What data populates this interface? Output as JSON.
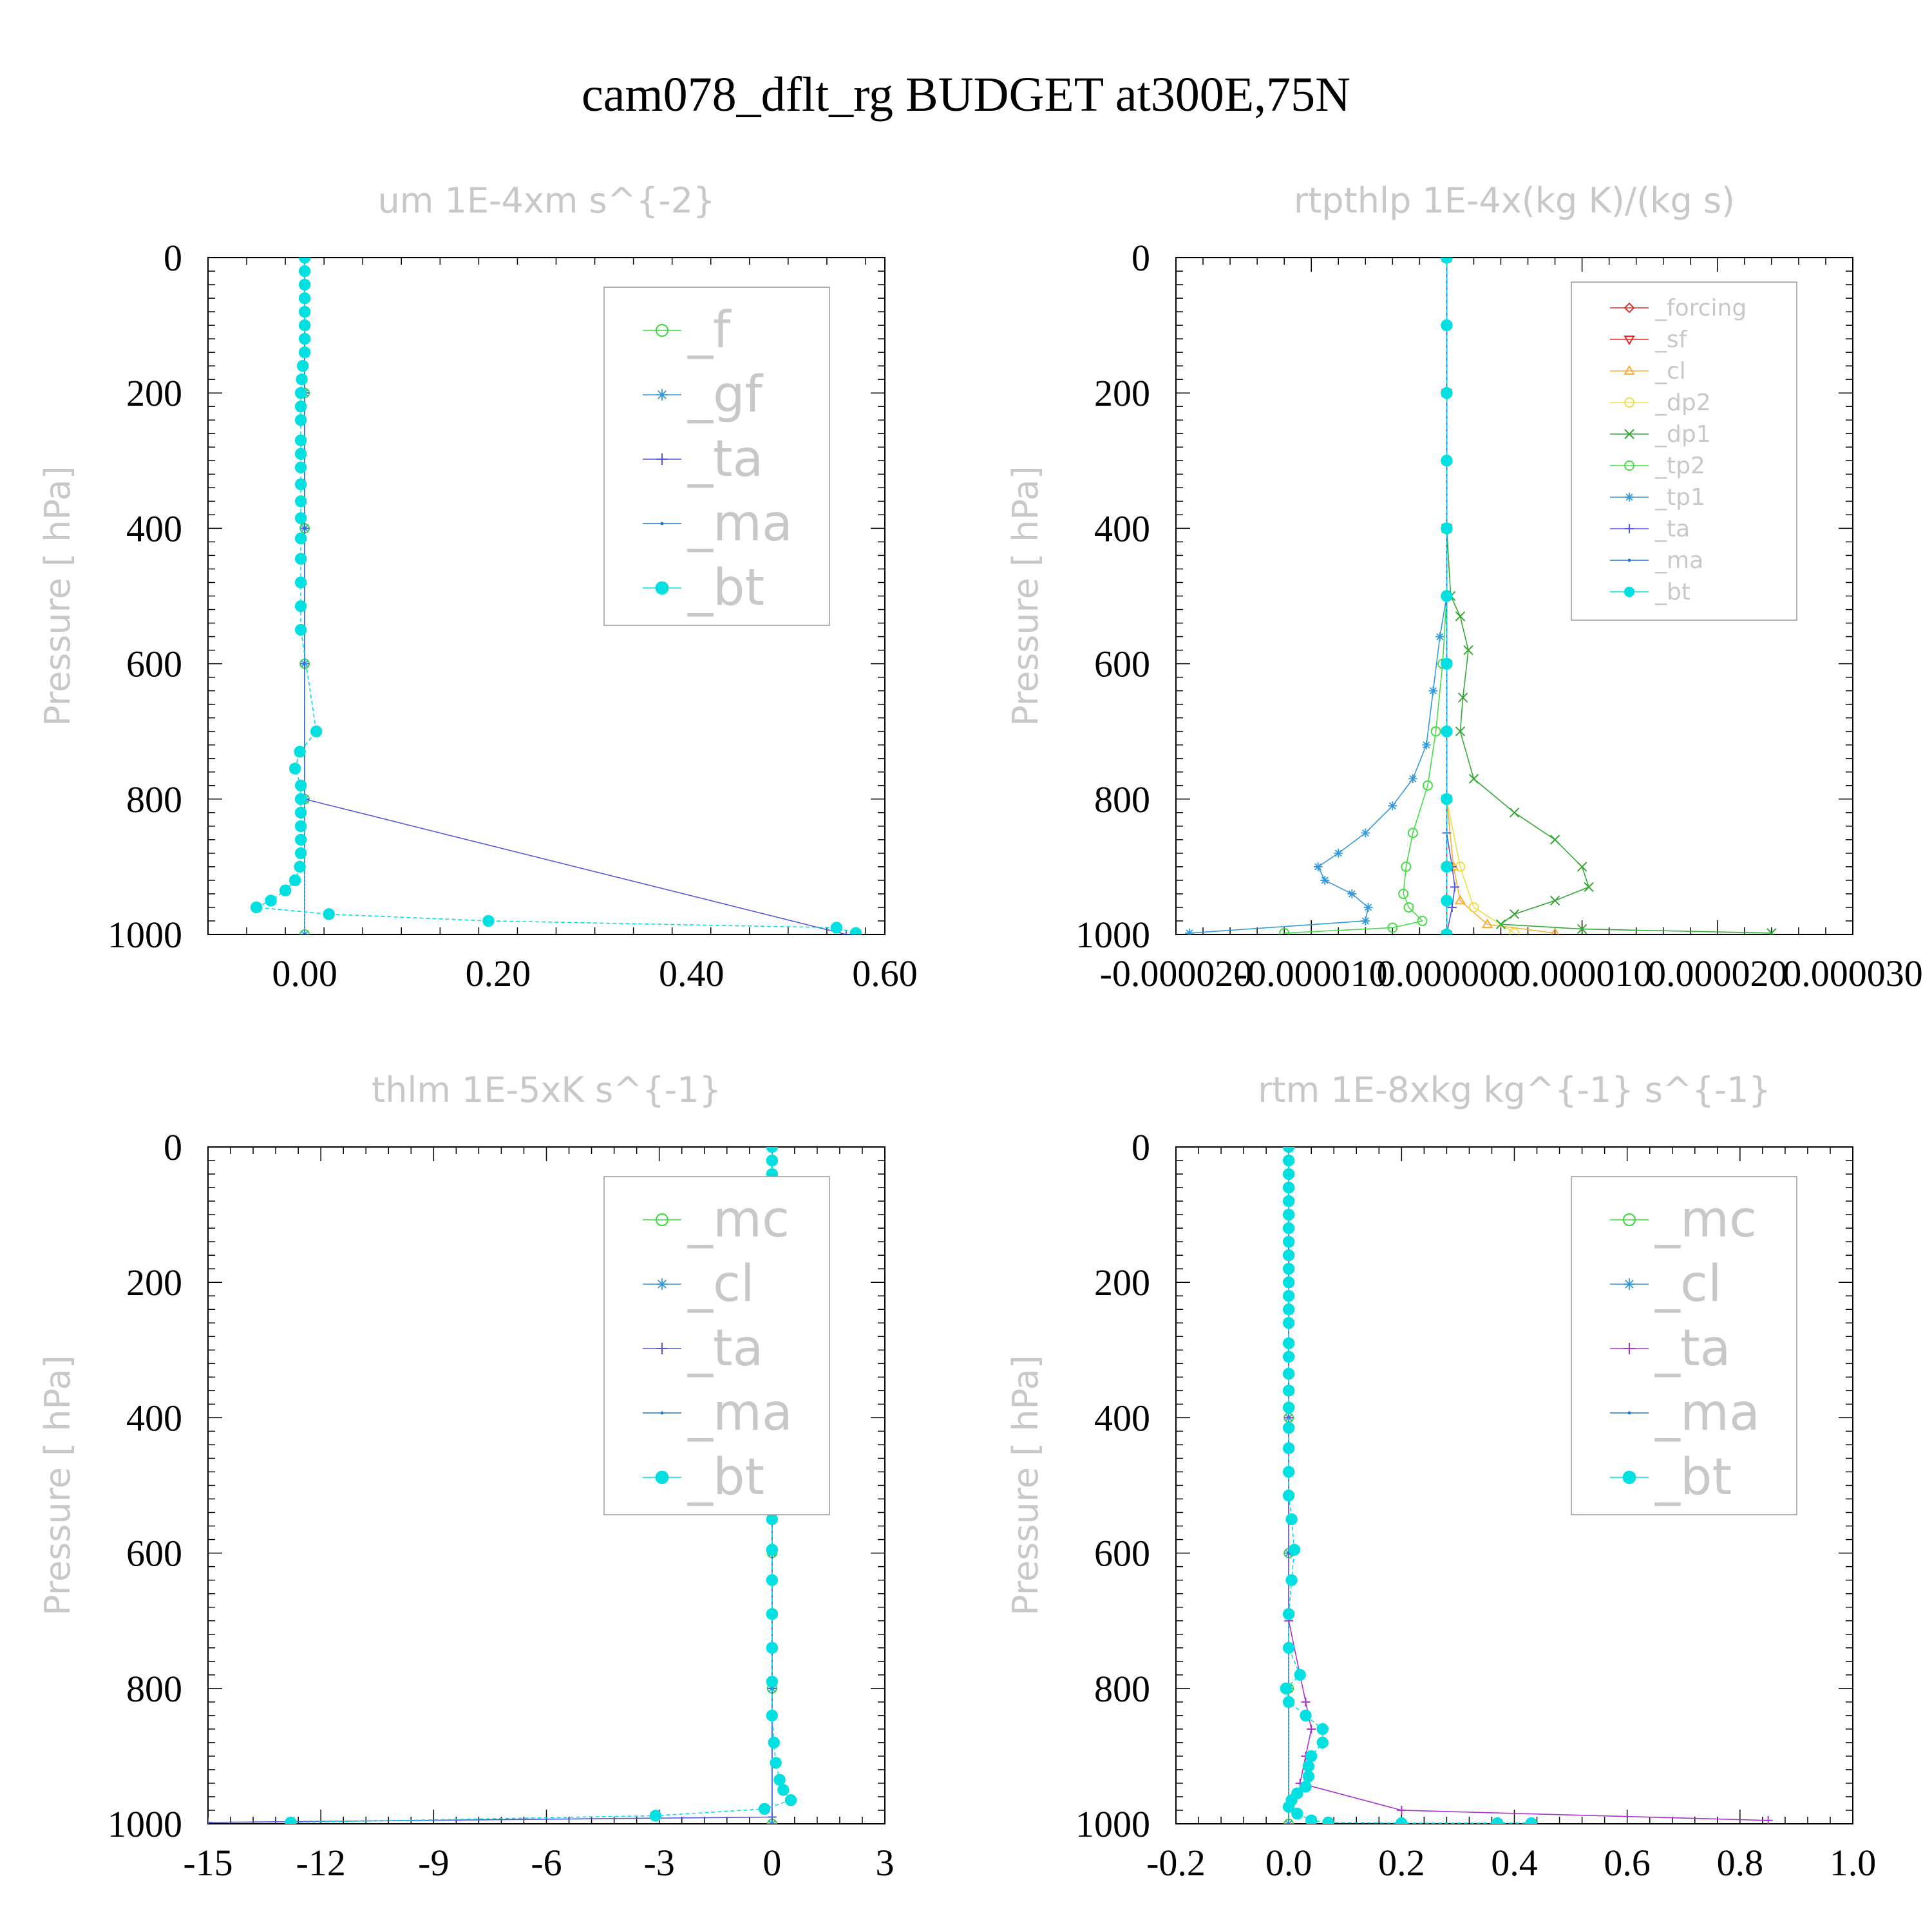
{
  "figure": {
    "title": "cam078_dflt_rg  BUDGET at300E,75N"
  },
  "chart_data": [
    {
      "type": "line",
      "title": "um  1E-4xm s^{-2}",
      "ylabel": "Pressure [ hPa]",
      "xlabel": "",
      "xlim": [
        -0.1,
        0.6
      ],
      "ylim": [
        1000,
        0
      ],
      "xticks": [
        0.0,
        0.2,
        0.4,
        0.6
      ],
      "xtick_labels": [
        "0.00",
        "0.20",
        "0.40",
        "0.60"
      ],
      "yticks": [
        0,
        200,
        400,
        600,
        800,
        1000
      ],
      "ytick_labels": [
        "0",
        "200",
        "400",
        "600",
        "800",
        "1000"
      ],
      "legend": "top-right",
      "grid": false,
      "series": [
        {
          "name": "_f",
          "color": "#33dd33",
          "marker": "circle-open",
          "x": [
            0.0,
            0.0,
            0.0,
            0.0,
            0.0,
            0.0
          ],
          "y": [
            0,
            200,
            400,
            600,
            800,
            1000
          ]
        },
        {
          "name": "_gf",
          "color": "#3399dd",
          "marker": "asterisk",
          "x": [
            0.0,
            0.0,
            0.0,
            0.0,
            0.0,
            0.0
          ],
          "y": [
            0,
            200,
            400,
            600,
            800,
            1000
          ]
        },
        {
          "name": "_ta",
          "color": "#5555dd",
          "marker": "plus",
          "x": [
            0.0,
            0.0,
            0.0,
            0.0,
            0.0,
            0.56
          ],
          "y": [
            0,
            200,
            400,
            600,
            800,
            1000
          ]
        },
        {
          "name": "_ma",
          "color": "#2277cc",
          "marker": "dot",
          "x": [
            0.0,
            0.0,
            0.0,
            0.0,
            0.0,
            0.0
          ],
          "y": [
            0,
            200,
            400,
            600,
            800,
            1000
          ]
        },
        {
          "name": "_bt",
          "color": "#00e0e0",
          "marker": "filled-circle",
          "x": [
            0.0,
            0.0,
            0.0,
            0.0,
            0.0,
            0.0,
            0.0,
            0.0,
            -0.002,
            -0.003,
            -0.004,
            -0.004,
            -0.004,
            -0.004,
            -0.004,
            -0.004,
            -0.004,
            -0.004,
            -0.004,
            -0.004,
            -0.004,
            -0.004,
            -0.004,
            -0.004,
            0.012,
            -0.005,
            -0.01,
            -0.004,
            -0.004,
            -0.004,
            -0.004,
            -0.004,
            -0.004,
            -0.005,
            -0.01,
            -0.02,
            -0.035,
            -0.05,
            0.025,
            0.19,
            0.55,
            0.57
          ],
          "y": [
            0,
            20,
            40,
            60,
            80,
            100,
            120,
            140,
            160,
            180,
            200,
            220,
            240,
            270,
            290,
            310,
            335,
            360,
            385,
            415,
            445,
            480,
            515,
            550,
            700,
            730,
            755,
            780,
            800,
            820,
            840,
            860,
            880,
            900,
            920,
            935,
            950,
            960,
            970,
            980,
            990,
            998
          ]
        }
      ]
    },
    {
      "type": "line",
      "title": "rtpthlp  1E-4x(kg K)/(kg s)",
      "ylabel": "Pressure [ hPa]",
      "xlabel": "",
      "xlim": [
        -2e-05,
        3e-05
      ],
      "ylim": [
        1000,
        0
      ],
      "xticks": [
        -2e-05,
        -1e-05,
        0.0,
        1e-05,
        2e-05,
        3e-05
      ],
      "xtick_labels": [
        "-0.000020",
        "-0.000010",
        "0.000000",
        "0.000010",
        "0.000020",
        "0.000030"
      ],
      "yticks": [
        0,
        200,
        400,
        600,
        800,
        1000
      ],
      "ytick_labels": [
        "0",
        "200",
        "400",
        "600",
        "800",
        "1000"
      ],
      "legend": "top-right",
      "grid": false,
      "series": [
        {
          "name": "_forcing",
          "color": "#dd3333",
          "marker": "diamond-open",
          "x": [
            0,
            0,
            0,
            0,
            0,
            0
          ],
          "y": [
            0,
            200,
            400,
            600,
            800,
            1000
          ]
        },
        {
          "name": "_sf",
          "color": "#ee2222",
          "marker": "triangle-down",
          "x": [
            0,
            0,
            0,
            0,
            0,
            0
          ],
          "y": [
            0,
            200,
            400,
            600,
            800,
            1000
          ]
        },
        {
          "name": "_cl",
          "color": "#ffaa33",
          "marker": "triangle-open",
          "x": [
            0,
            0,
            0,
            0,
            0,
            5e-07,
            1e-06,
            3e-06,
            8e-06
          ],
          "y": [
            0,
            200,
            400,
            600,
            800,
            900,
            950,
            985,
            998
          ]
        },
        {
          "name": "_dp2",
          "color": "#eedd44",
          "marker": "circle-open",
          "x": [
            0,
            0,
            0,
            0,
            0,
            1e-06,
            2e-06,
            5e-06
          ],
          "y": [
            0,
            200,
            400,
            600,
            800,
            900,
            960,
            998
          ]
        },
        {
          "name": "_dp1",
          "color": "#33aa33",
          "marker": "x",
          "x": [
            0,
            0,
            3e-07,
            1e-06,
            1.6e-06,
            1.2e-06,
            1e-06,
            2e-06,
            5e-06,
            8e-06,
            1e-05,
            1.05e-05,
            8e-06,
            5e-06,
            4e-06,
            1e-05,
            2.4e-05
          ],
          "y": [
            0,
            400,
            500,
            530,
            580,
            650,
            700,
            770,
            820,
            860,
            900,
            930,
            950,
            970,
            985,
            992,
            998
          ]
        },
        {
          "name": "_tp2",
          "color": "#44dd44",
          "marker": "circle-open",
          "x": [
            0,
            0,
            -3e-07,
            -8e-07,
            -1.4e-06,
            -2.5e-06,
            -3e-06,
            -3.2e-06,
            -2.8e-06,
            -1.8e-06,
            -4e-06,
            -1.2e-05
          ],
          "y": [
            0,
            500,
            600,
            700,
            780,
            850,
            900,
            940,
            960,
            980,
            990,
            998
          ]
        },
        {
          "name": "_tp1",
          "color": "#3399dd",
          "marker": "asterisk",
          "x": [
            0,
            0,
            -5e-07,
            -1e-06,
            -1.5e-06,
            -2.5e-06,
            -4e-06,
            -6e-06,
            -8e-06,
            -9.5e-06,
            -9e-06,
            -7e-06,
            -5.8e-06,
            -6e-06,
            -1.9e-05
          ],
          "y": [
            0,
            500,
            560,
            640,
            720,
            770,
            810,
            850,
            880,
            900,
            920,
            940,
            960,
            980,
            998
          ]
        },
        {
          "name": "_ta",
          "color": "#5555dd",
          "marker": "plus",
          "x": [
            0,
            0,
            4e-07,
            6e-07,
            4e-07,
            0
          ],
          "y": [
            0,
            850,
            900,
            930,
            960,
            1000
          ]
        },
        {
          "name": "_ma",
          "color": "#2277cc",
          "marker": "dot",
          "x": [
            0,
            0,
            0,
            0,
            0,
            0
          ],
          "y": [
            0,
            200,
            400,
            600,
            800,
            1000
          ]
        },
        {
          "name": "_bt",
          "color": "#00e0e0",
          "marker": "filled-circle",
          "x": [
            0,
            0,
            0,
            0,
            0,
            0,
            0,
            0,
            0,
            0,
            0,
            0
          ],
          "y": [
            0,
            100,
            200,
            300,
            400,
            500,
            600,
            700,
            800,
            900,
            950,
            1000
          ]
        }
      ]
    },
    {
      "type": "line",
      "title": "thlm  1E-5xK s^{-1}",
      "ylabel": "Pressure [ hPa]",
      "xlabel": "",
      "xlim": [
        -15,
        3
      ],
      "ylim": [
        1000,
        0
      ],
      "xticks": [
        -15,
        -12,
        -9,
        -6,
        -3,
        0,
        3
      ],
      "xtick_labels": [
        "-15",
        "-12",
        "-9",
        "-6",
        "-3",
        "0",
        "3"
      ],
      "yticks": [
        0,
        200,
        400,
        600,
        800,
        1000
      ],
      "ytick_labels": [
        "0",
        "200",
        "400",
        "600",
        "800",
        "1000"
      ],
      "legend": "top-right",
      "grid": false,
      "series": [
        {
          "name": "_mc",
          "color": "#33dd33",
          "marker": "circle-open",
          "x": [
            0,
            0,
            0,
            0,
            0,
            0
          ],
          "y": [
            0,
            200,
            400,
            600,
            800,
            1000
          ]
        },
        {
          "name": "_cl",
          "color": "#3399dd",
          "marker": "asterisk",
          "x": [
            0,
            0,
            0,
            0,
            0,
            0
          ],
          "y": [
            0,
            200,
            400,
            600,
            800,
            1000
          ]
        },
        {
          "name": "_ta",
          "color": "#5555dd",
          "marker": "plus",
          "x": [
            0,
            0,
            0,
            0,
            -15
          ],
          "y": [
            0,
            400,
            800,
            990,
            998
          ]
        },
        {
          "name": "_ma",
          "color": "#2277cc",
          "marker": "dot",
          "x": [
            0,
            0,
            0,
            0,
            0,
            0
          ],
          "y": [
            0,
            200,
            400,
            600,
            800,
            1000
          ]
        },
        {
          "name": "_bt",
          "color": "#00e0e0",
          "marker": "filled-circle",
          "x": [
            0,
            0,
            0,
            0,
            0,
            0,
            0,
            0,
            0,
            0,
            0,
            0,
            0,
            0,
            0,
            0,
            0,
            0,
            0,
            0,
            0,
            0,
            0,
            0,
            0,
            0,
            0,
            0,
            0,
            0,
            0.05,
            0.1,
            0.2,
            0.3,
            0.5,
            -0.2,
            -3.1,
            -12.8
          ],
          "y": [
            0,
            20,
            40,
            60,
            80,
            100,
            120,
            140,
            160,
            180,
            200,
            220,
            240,
            260,
            290,
            310,
            335,
            360,
            385,
            415,
            445,
            480,
            515,
            550,
            595,
            640,
            690,
            740,
            790,
            840,
            880,
            910,
            935,
            950,
            965,
            978,
            988,
            998
          ]
        }
      ]
    },
    {
      "type": "line",
      "title": "rtm  1E-8xkg kg^{-1} s^{-1}",
      "ylabel": "Pressure [ hPa]",
      "xlabel": "",
      "xlim": [
        -0.2,
        1.0
      ],
      "ylim": [
        1000,
        0
      ],
      "xticks": [
        -0.2,
        0.0,
        0.2,
        0.4,
        0.6,
        0.8,
        1.0
      ],
      "xtick_labels": [
        "-0.2",
        "0.0",
        "0.2",
        "0.4",
        "0.6",
        "0.8",
        "1.0"
      ],
      "yticks": [
        0,
        200,
        400,
        600,
        800,
        1000
      ],
      "ytick_labels": [
        "0",
        "200",
        "400",
        "600",
        "800",
        "1000"
      ],
      "legend": "top-right",
      "grid": false,
      "series": [
        {
          "name": "_mc",
          "color": "#33dd33",
          "marker": "circle-open",
          "x": [
            0,
            0,
            0,
            0,
            0,
            0
          ],
          "y": [
            0,
            200,
            400,
            600,
            800,
            1000
          ]
        },
        {
          "name": "_cl",
          "color": "#3399dd",
          "marker": "asterisk",
          "x": [
            0,
            0,
            0,
            0,
            0,
            0
          ],
          "y": [
            0,
            200,
            400,
            600,
            800,
            1000
          ]
        },
        {
          "name": "_ta",
          "color": "#aa33cc",
          "marker": "plus",
          "x": [
            0,
            0,
            0,
            0.02,
            0.03,
            0.04,
            0.03,
            0.02,
            0.2,
            0.85
          ],
          "y": [
            0,
            400,
            700,
            780,
            820,
            860,
            900,
            940,
            980,
            995
          ]
        },
        {
          "name": "_ma",
          "color": "#2277cc",
          "marker": "dot",
          "x": [
            0,
            0,
            0,
            0,
            0,
            0
          ],
          "y": [
            0,
            200,
            400,
            600,
            800,
            1000
          ]
        },
        {
          "name": "_bt",
          "color": "#00e0e0",
          "marker": "filled-circle",
          "x": [
            0,
            0,
            0,
            0,
            0,
            0,
            0,
            0,
            0,
            0,
            0,
            0,
            0,
            0,
            0,
            0,
            0,
            0,
            0,
            0,
            0,
            0,
            0,
            0.005,
            0.01,
            0.005,
            0,
            0,
            0.02,
            -0.005,
            0.0,
            0.03,
            0.06,
            0.06,
            0.04,
            0.035,
            0.035,
            0.03,
            0.015,
            0.005,
            0.0,
            0.015,
            0.04,
            0.07,
            0.2,
            0.37,
            0.43
          ],
          "y": [
            0,
            20,
            40,
            60,
            80,
            100,
            120,
            140,
            160,
            180,
            200,
            220,
            240,
            260,
            290,
            310,
            335,
            360,
            385,
            415,
            445,
            480,
            515,
            550,
            595,
            640,
            690,
            740,
            780,
            800,
            820,
            840,
            860,
            880,
            900,
            915,
            930,
            945,
            955,
            965,
            975,
            985,
            995,
            998,
            999,
            999,
            999
          ]
        }
      ]
    }
  ]
}
